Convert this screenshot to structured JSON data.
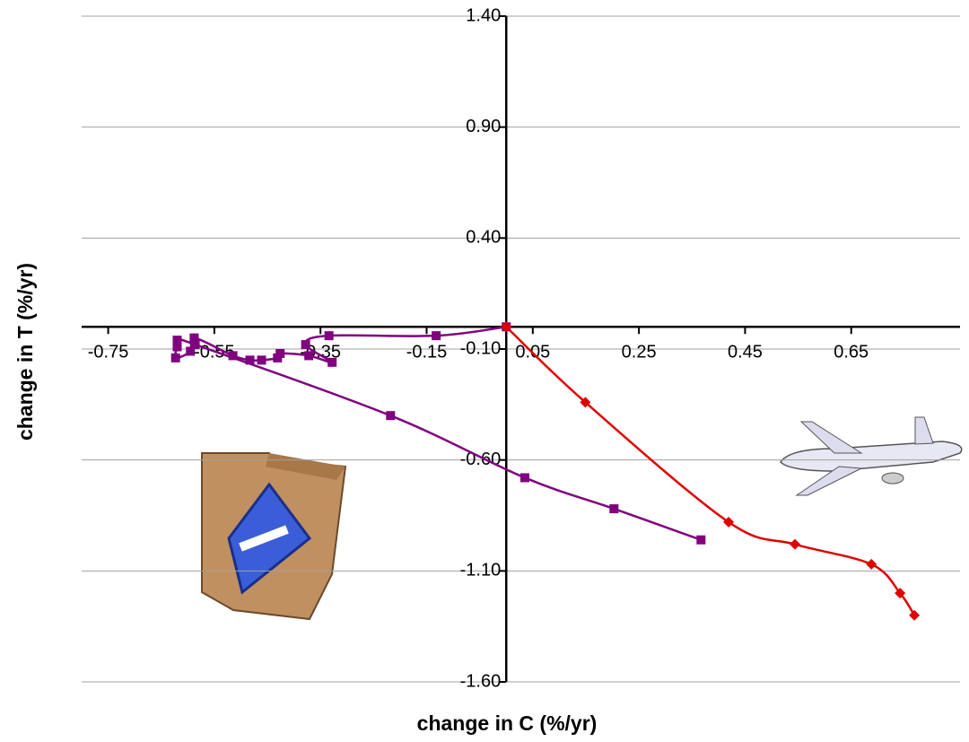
{
  "chart_data": {
    "type": "line",
    "xlabel": "change in C (%/yr)",
    "ylabel": "change in T (%/yr)",
    "xlim": [
      -0.8,
      0.855
    ],
    "ylim": [
      -1.6,
      1.4
    ],
    "xticks": [
      -0.75,
      -0.55,
      -0.35,
      -0.15,
      0.05,
      0.25,
      0.45,
      0.65
    ],
    "yticks": [
      {
        "value": 1.4,
        "label": "1.40"
      },
      {
        "value": 0.9,
        "label": "0.90"
      },
      {
        "value": 0.4,
        "label": "0.40"
      },
      {
        "value": -0.1,
        "label": "-0.10"
      },
      {
        "value": -0.6,
        "label": "-0.60"
      },
      {
        "value": -1.1,
        "label": "-1.10"
      },
      {
        "value": -1.6,
        "label": "-1.60"
      }
    ],
    "grid": true,
    "smooth": true,
    "series": [
      {
        "color": "#800080",
        "marker": "square",
        "x": [
          0.367,
          0.203,
          0.035,
          -0.218,
          -0.586,
          -0.62,
          -0.62,
          -0.623,
          -0.595,
          -0.588,
          -0.515,
          -0.483,
          -0.461,
          -0.431,
          -0.426,
          -0.372,
          -0.328,
          -0.378,
          -0.334,
          -0.132,
          0
        ],
        "values": [
          -0.96,
          -0.82,
          -0.68,
          -0.4,
          -0.08,
          -0.06,
          -0.09,
          -0.14,
          -0.11,
          -0.05,
          -0.13,
          -0.15,
          -0.15,
          -0.14,
          -0.12,
          -0.13,
          -0.16,
          -0.08,
          -0.04,
          -0.04,
          0
        ]
      },
      {
        "color": "#e00000",
        "marker": "diamond",
        "x": [
          0,
          0.149,
          0.419,
          0.544,
          0.688,
          0.742,
          0.769
        ],
        "values": [
          0,
          -0.34,
          -0.88,
          -0.98,
          -1.07,
          -1.2,
          -1.3
        ]
      }
    ]
  }
}
